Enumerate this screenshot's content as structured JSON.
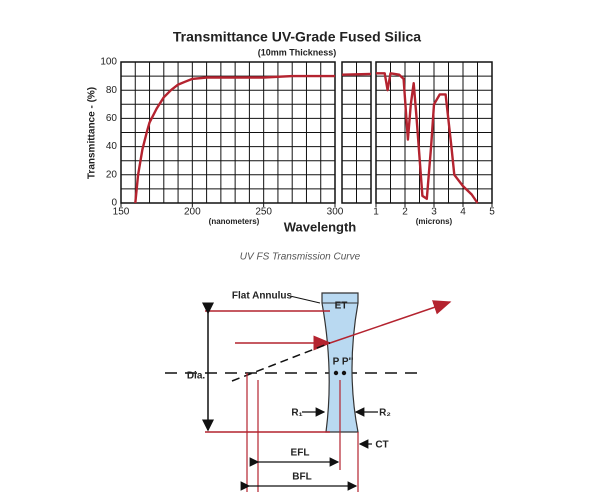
{
  "chart_data": [
    {
      "type": "line",
      "title": "Transmittance UV-Grade Fused Silica",
      "subtitle": "(10mm Thickness)",
      "y_label": "Transmittance - (%)",
      "x_label": "Wavelength",
      "x_unit_label": "(nanometers)",
      "x": [
        160,
        162,
        165,
        168,
        170,
        175,
        180,
        185,
        190,
        195,
        200,
        210,
        220,
        250,
        270,
        300
      ],
      "series": [
        {
          "color": "#b4232f",
          "values": [
            0,
            20,
            38,
            50,
            57,
            67,
            75,
            80,
            84,
            86,
            88,
            89,
            89,
            89,
            90,
            90
          ]
        }
      ],
      "xlim": [
        150,
        300
      ],
      "xticks": [
        150,
        200,
        250,
        300
      ],
      "ylim": [
        0,
        100
      ],
      "yticks": [
        0,
        20,
        40,
        60,
        80,
        100
      ],
      "grid": true
    },
    {
      "type": "line",
      "series": [
        {
          "color": "#b4232f",
          "values": [
            91,
            91.5
          ]
        }
      ],
      "ylim": [
        0,
        100
      ],
      "grid": true
    },
    {
      "type": "line",
      "x_unit_label": "(microns)",
      "x": [
        1.0,
        1.3,
        1.4,
        1.5,
        1.8,
        1.95,
        2.1,
        2.2,
        2.3,
        2.4,
        2.6,
        2.75,
        2.9,
        3.0,
        3.2,
        3.4,
        3.6,
        3.7,
        4.0,
        4.3,
        4.5
      ],
      "series": [
        {
          "color": "#b4232f",
          "values": [
            92,
            92,
            80,
            92,
            91,
            88,
            45,
            70,
            85,
            60,
            5,
            3,
            40,
            70,
            77,
            77,
            40,
            20,
            12,
            6,
            0
          ]
        }
      ],
      "xlim": [
        1,
        5
      ],
      "xticks": [
        1,
        2,
        3,
        4,
        5
      ],
      "ylim": [
        0,
        100
      ],
      "grid": true
    }
  ],
  "caption": "UV FS Transmission Curve",
  "diagram": {
    "labels": {
      "flat_annulus": "Flat Annulus",
      "et": "ET",
      "principal": "P P''",
      "dia": "Dia.",
      "r1": "R₁",
      "r2": "R₂",
      "ct": "CT",
      "efl": "EFL",
      "bfl": "BFL"
    }
  }
}
